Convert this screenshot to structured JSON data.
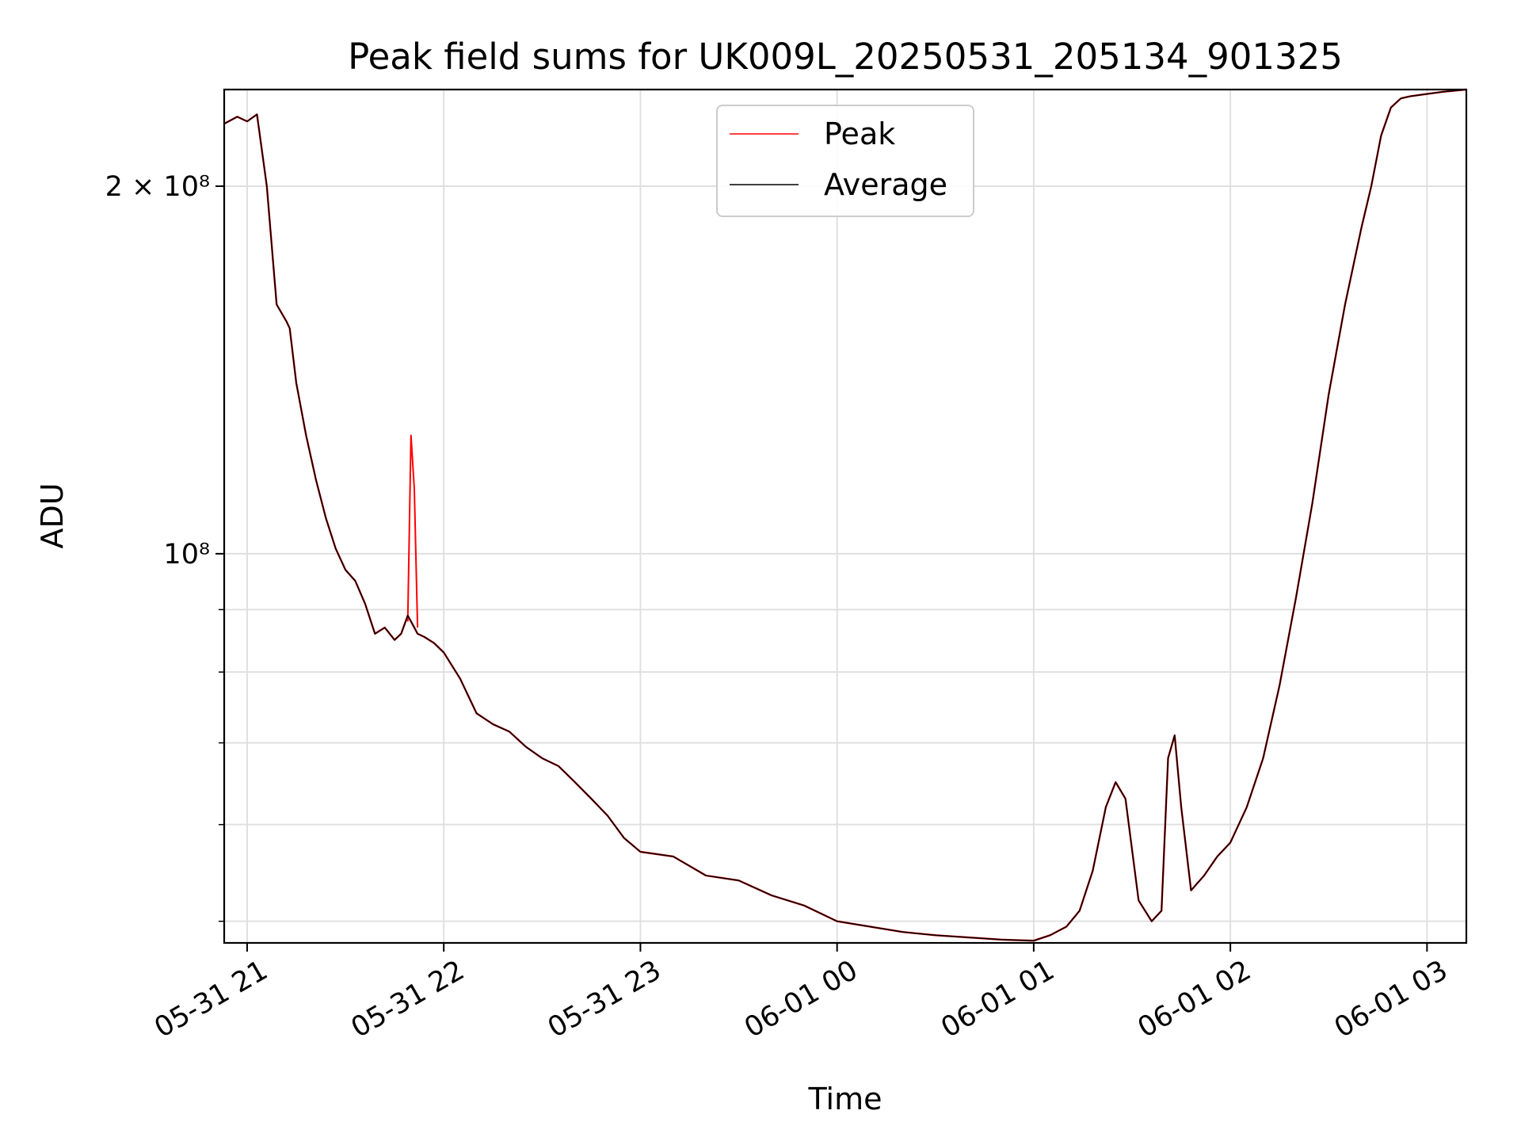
{
  "chart_data": {
    "type": "line",
    "title": "Peak field sums for UK009L_20250531_205134_901325",
    "xlabel": "Time",
    "ylabel": "ADU",
    "yscale": "log",
    "xlim": [
      "2025-05-31 20:53",
      "2025-06-01 03:12"
    ],
    "ylim": [
      48000000,
      240000000
    ],
    "grid": true,
    "legend": {
      "placement": "top-center",
      "entries": [
        "Peak",
        "Average"
      ]
    },
    "colors": {
      "Peak": "#ff0000",
      "Average": "#000000"
    },
    "x_ticks": [
      {
        "label": "05-31 21",
        "value": "2025-05-31 21:00"
      },
      {
        "label": "05-31 22",
        "value": "2025-05-31 22:00"
      },
      {
        "label": "05-31 23",
        "value": "2025-05-31 23:00"
      },
      {
        "label": "06-01 00",
        "value": "2025-06-01 00:00"
      },
      {
        "label": "06-01 01",
        "value": "2025-06-01 01:00"
      },
      {
        "label": "06-01 02",
        "value": "2025-06-01 02:00"
      },
      {
        "label": "06-01 03",
        "value": "2025-06-01 03:00"
      }
    ],
    "y_ticks_major": [
      {
        "label": "2 × 10⁸",
        "value": 200000000
      },
      {
        "label": "10⁸",
        "value": 100000000
      }
    ],
    "y_ticks_minor": [
      50000000,
      60000000,
      70000000,
      80000000,
      90000000
    ],
    "series": [
      {
        "name": "Average",
        "x": [
          "2025-05-31 20:53",
          "2025-05-31 20:57",
          "2025-05-31 21:00",
          "2025-05-31 21:03",
          "2025-05-31 21:06",
          "2025-05-31 21:09",
          "2025-05-31 21:12",
          "2025-05-31 21:13",
          "2025-05-31 21:15",
          "2025-05-31 21:18",
          "2025-05-31 21:21",
          "2025-05-31 21:24",
          "2025-05-31 21:27",
          "2025-05-31 21:30",
          "2025-05-31 21:33",
          "2025-05-31 21:36",
          "2025-05-31 21:39",
          "2025-05-31 21:42",
          "2025-05-31 21:45",
          "2025-05-31 21:47",
          "2025-05-31 21:49",
          "2025-05-31 21:51",
          "2025-05-31 21:52",
          "2025-05-31 21:54",
          "2025-05-31 21:57",
          "2025-05-31 22:00",
          "2025-05-31 22:05",
          "2025-05-31 22:10",
          "2025-05-31 22:15",
          "2025-05-31 22:20",
          "2025-05-31 22:25",
          "2025-05-31 22:30",
          "2025-05-31 22:35",
          "2025-05-31 22:40",
          "2025-05-31 22:45",
          "2025-05-31 22:50",
          "2025-05-31 22:55",
          "2025-05-31 23:00",
          "2025-05-31 23:10",
          "2025-05-31 23:20",
          "2025-05-31 23:30",
          "2025-05-31 23:40",
          "2025-05-31 23:50",
          "2025-06-01 00:00",
          "2025-06-01 00:10",
          "2025-06-01 00:20",
          "2025-06-01 00:30",
          "2025-06-01 00:40",
          "2025-06-01 00:50",
          "2025-06-01 01:00",
          "2025-06-01 01:05",
          "2025-06-01 01:10",
          "2025-06-01 01:14",
          "2025-06-01 01:18",
          "2025-06-01 01:22",
          "2025-06-01 01:25",
          "2025-06-01 01:28",
          "2025-06-01 01:32",
          "2025-06-01 01:36",
          "2025-06-01 01:39",
          "2025-06-01 01:41",
          "2025-06-01 01:43",
          "2025-06-01 01:45",
          "2025-06-01 01:48",
          "2025-06-01 01:52",
          "2025-06-01 01:56",
          "2025-06-01 02:00",
          "2025-06-01 02:05",
          "2025-06-01 02:10",
          "2025-06-01 02:15",
          "2025-06-01 02:20",
          "2025-06-01 02:25",
          "2025-06-01 02:30",
          "2025-06-01 02:35",
          "2025-06-01 02:40",
          "2025-06-01 02:43",
          "2025-06-01 02:46",
          "2025-06-01 02:49",
          "2025-06-01 02:52",
          "2025-06-01 02:55",
          "2025-06-01 03:00",
          "2025-06-01 03:05",
          "2025-06-01 03:12"
        ],
        "values": [
          225000000,
          228000000,
          226000000,
          229000000,
          200000000,
          160000000,
          155000000,
          153000000,
          138000000,
          125000000,
          115000000,
          107000000,
          101000000,
          97000000,
          95000000,
          91000000,
          86000000,
          87000000,
          85000000,
          86000000,
          89000000,
          87000000,
          86000000,
          85500000,
          84500000,
          83000000,
          79000000,
          74000000,
          72500000,
          71500000,
          69500000,
          68000000,
          67000000,
          65000000,
          63000000,
          61000000,
          58500000,
          57000000,
          56500000,
          54500000,
          54000000,
          52500000,
          51500000,
          50000000,
          49500000,
          49000000,
          48700000,
          48500000,
          48300000,
          48200000,
          48700000,
          49500000,
          51000000,
          55000000,
          62000000,
          65000000,
          63000000,
          52000000,
          50000000,
          51000000,
          68000000,
          71000000,
          62000000,
          53000000,
          54500000,
          56500000,
          58000000,
          62000000,
          68000000,
          78000000,
          92000000,
          110000000,
          135000000,
          160000000,
          185000000,
          200000000,
          220000000,
          232000000,
          236000000,
          237000000,
          238000000,
          239000000,
          240000000
        ]
      },
      {
        "name": "Peak",
        "x": [
          "2025-05-31 21:49",
          "2025-05-31 21:50",
          "2025-05-31 21:51",
          "2025-05-31 21:52"
        ],
        "values": [
          88000000,
          125000000,
          113000000,
          87000000
        ]
      }
    ]
  }
}
